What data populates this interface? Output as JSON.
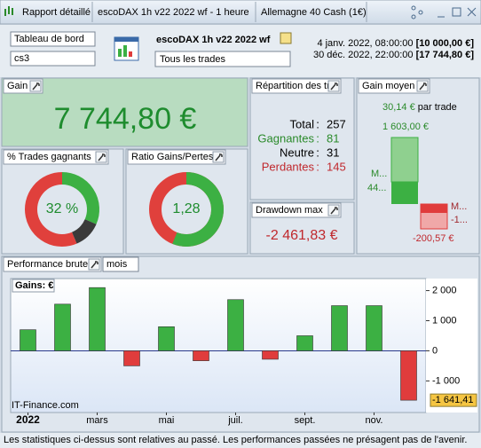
{
  "titlebar": {
    "tabs": [
      "Rapport détaillé",
      "escoDAX 1h v22 2022 wf - 1 heure",
      "Allemagne 40 Cash (1€)"
    ]
  },
  "toolbar": {
    "view_select": "Tableau de bord",
    "profile_select": "cs3",
    "system_name": "escoDAX 1h v22 2022 wf",
    "trades_select": "Tous les trades",
    "start": "4 janv. 2022, 08:00:00",
    "start_capital": "[10 000,00 €]",
    "end": "30 déc. 2022, 22:00:00",
    "end_capital": "[17 744,80 €]"
  },
  "gain": {
    "title": "Gain",
    "value": "7 744,80 €"
  },
  "repartition": {
    "title": "Répartition des tr...",
    "rows": [
      {
        "label": "Total",
        "value": 257,
        "color": "#000000"
      },
      {
        "label": "Gagnantes",
        "value": 81,
        "color": "#2a8a2a"
      },
      {
        "label": "Neutre",
        "value": 31,
        "color": "#000000"
      },
      {
        "label": "Perdantes",
        "value": 145,
        "color": "#c0282d"
      }
    ]
  },
  "win_rate": {
    "title": "% Trades gagnants",
    "label": "32 %",
    "colors": [
      "#3cb043",
      "#3a3a3a",
      "#e0403c"
    ]
  },
  "ratio": {
    "title": "Ratio Gains/Pertes",
    "value": 1.28,
    "label": "1,28"
  },
  "drawdown": {
    "title": "Drawdown max",
    "value": "-2 461,83 €"
  },
  "avg_gain": {
    "title": "Gain moyen",
    "per_trade": "30,14 €",
    "per_trade_suffix": "par trade",
    "win_avg": "1 603,00 €",
    "loss_avg": "-200,57 €",
    "win_labels": [
      "M...",
      "44..."
    ],
    "loss_labels": [
      "M...",
      "-1..."
    ]
  },
  "chart_data": {
    "type": "bar",
    "title": "Performance brute",
    "period": "mois",
    "y_label": "Gains: €",
    "watermark": "IT-Finance.com",
    "categories": [
      "2022",
      null,
      "mars",
      null,
      "mai",
      null,
      "juil.",
      null,
      "sept.",
      null,
      "nov.",
      null
    ],
    "values": [
      700,
      1550,
      2100,
      -500,
      800,
      -330,
      1700,
      -280,
      500,
      1500,
      1500,
      -1641.41
    ],
    "value_labels": [
      null,
      null,
      null,
      null,
      null,
      null,
      null,
      null,
      null,
      null,
      null,
      "-1 641,41"
    ],
    "color_positive": "#3cb043",
    "color_negative": "#e03c3c",
    "ylim": [
      -2050,
      2400
    ],
    "yticks": [
      {
        "value": -1000,
        "label": "-1 000"
      },
      0,
      {
        "value": 1000,
        "label": "1 000"
      },
      {
        "value": 2000,
        "label": "2 000"
      }
    ]
  },
  "footer": "Les statistiques ci-dessus sont relatives au passé. Les performances passées ne présagent pas de l'avenir."
}
